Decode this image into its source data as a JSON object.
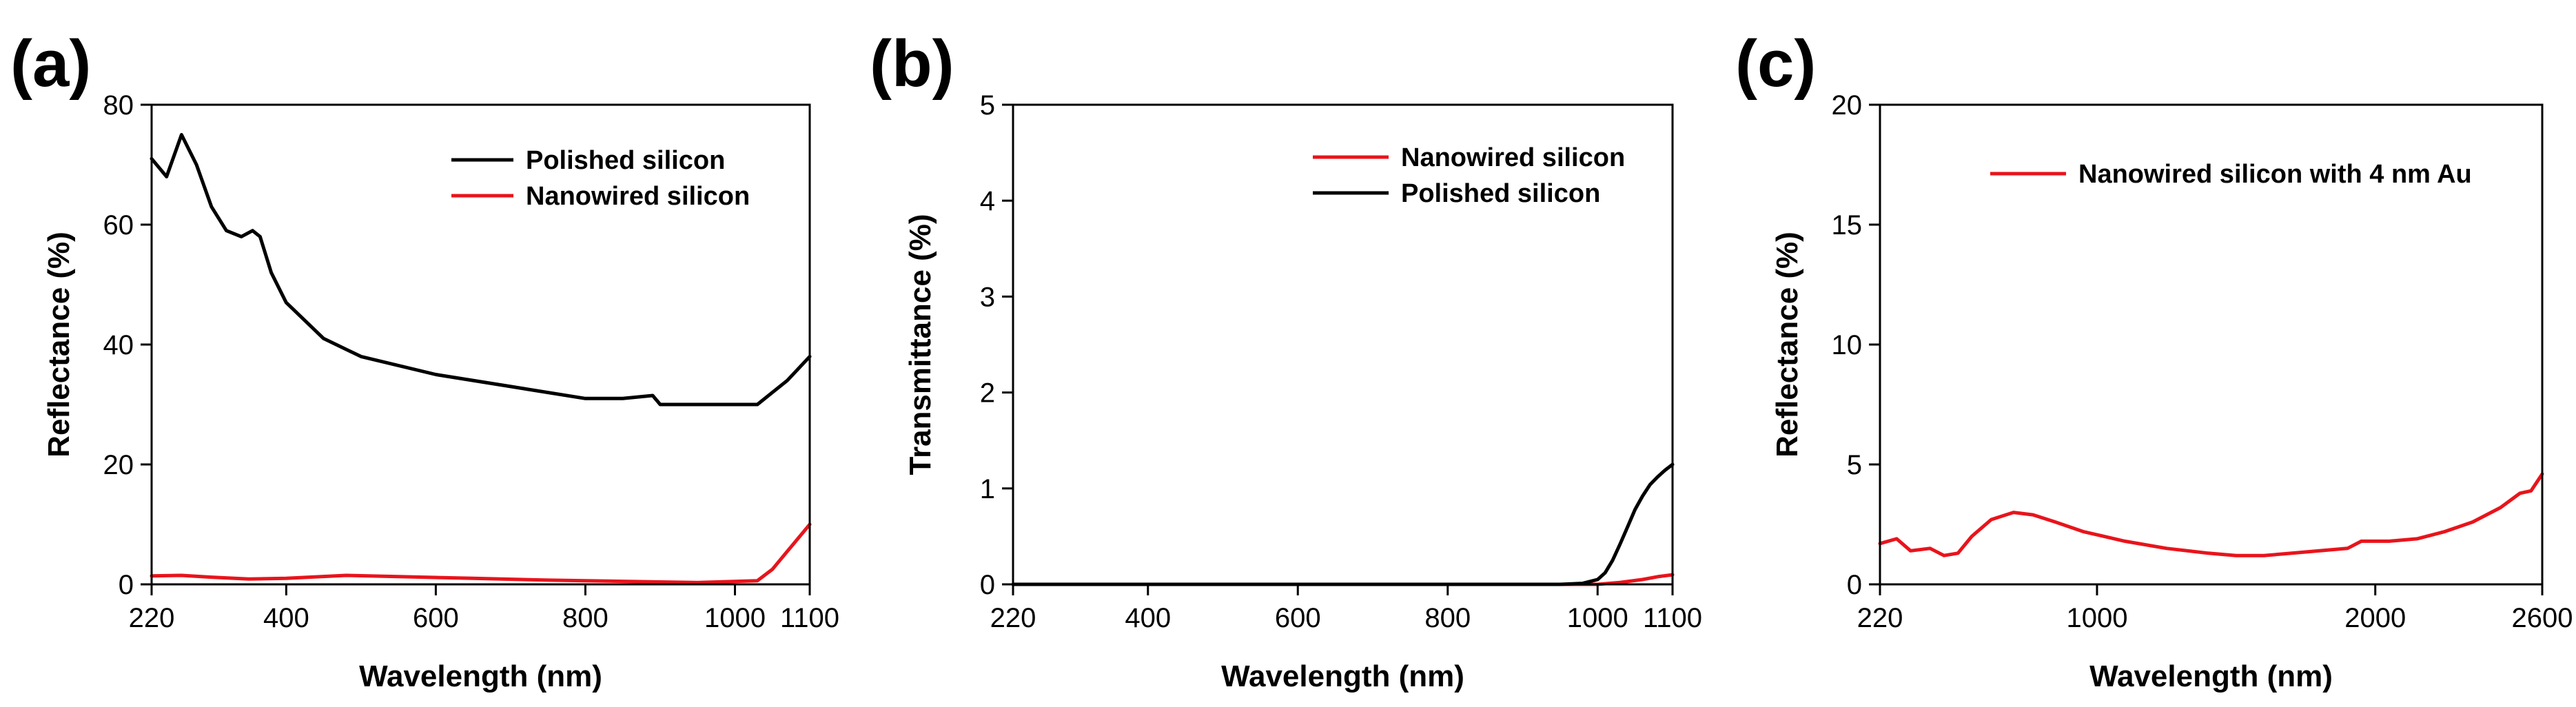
{
  "chart_data": [
    {
      "panel": "(a)",
      "type": "line",
      "xlabel": "Wavelength (nm)",
      "ylabel": "Reflectance (%)",
      "xlim": [
        220,
        1100
      ],
      "ylim": [
        0,
        80
      ],
      "xticks": [
        220,
        400,
        600,
        800,
        1000,
        1100
      ],
      "yticks": [
        0,
        20,
        40,
        60,
        80
      ],
      "legend_position": "top-right",
      "series": [
        {
          "name": "Polished silicon",
          "color": "#000000",
          "x": [
            220,
            240,
            260,
            280,
            300,
            320,
            340,
            355,
            365,
            380,
            400,
            450,
            500,
            600,
            700,
            800,
            850,
            890,
            900,
            950,
            1000,
            1030,
            1050,
            1070,
            1100
          ],
          "y": [
            71,
            68,
            75,
            70,
            63,
            59,
            58,
            59,
            58,
            52,
            47,
            41,
            38,
            35,
            33,
            31,
            31,
            31.5,
            30,
            30,
            30,
            30,
            32,
            34,
            38
          ]
        },
        {
          "name": "Nanowired silicon",
          "color": "#e8141c",
          "x": [
            220,
            260,
            300,
            350,
            400,
            480,
            550,
            650,
            750,
            850,
            950,
            1030,
            1050,
            1070,
            1100
          ],
          "y": [
            1.4,
            1.5,
            1.2,
            0.9,
            1.0,
            1.5,
            1.3,
            1.0,
            0.7,
            0.5,
            0.3,
            0.6,
            2.5,
            5.5,
            10
          ]
        }
      ]
    },
    {
      "panel": "(b)",
      "type": "line",
      "xlabel": "Wavelength (nm)",
      "ylabel": "Transmittance (%)",
      "xlim": [
        220,
        1100
      ],
      "ylim": [
        0,
        5
      ],
      "xticks": [
        220,
        400,
        600,
        800,
        1000,
        1100
      ],
      "yticks": [
        0,
        1,
        2,
        3,
        4,
        5
      ],
      "legend_position": "top-right",
      "series": [
        {
          "name": "Nanowired silicon",
          "color": "#e8141c",
          "x": [
            220,
            400,
            600,
            800,
            950,
            1000,
            1030,
            1060,
            1080,
            1100
          ],
          "y": [
            0,
            0,
            0,
            0,
            0,
            0,
            0.02,
            0.05,
            0.08,
            0.1
          ]
        },
        {
          "name": "Polished silicon",
          "color": "#000000",
          "x": [
            220,
            400,
            600,
            800,
            950,
            980,
            1000,
            1010,
            1020,
            1030,
            1040,
            1050,
            1060,
            1070,
            1080,
            1090,
            1100
          ],
          "y": [
            0,
            0,
            0,
            0,
            0,
            0.01,
            0.05,
            0.12,
            0.25,
            0.42,
            0.6,
            0.78,
            0.92,
            1.04,
            1.12,
            1.19,
            1.25
          ]
        }
      ]
    },
    {
      "panel": "(c)",
      "type": "line",
      "xlabel": "Wavelength (nm)",
      "ylabel": "Reflectance (%)",
      "xlim": [
        220,
        2600
      ],
      "ylim": [
        0,
        20
      ],
      "xticks": [
        220,
        1000,
        2000,
        2600
      ],
      "yticks": [
        0,
        5,
        10,
        15,
        20
      ],
      "legend_position": "top-right",
      "series": [
        {
          "name": "Nanowired silicon with 4 nm Au",
          "color": "#e8141c",
          "x": [
            220,
            280,
            330,
            400,
            450,
            500,
            550,
            620,
            700,
            770,
            850,
            950,
            1100,
            1250,
            1400,
            1500,
            1600,
            1700,
            1800,
            1900,
            1950,
            2050,
            2150,
            2250,
            2350,
            2450,
            2520,
            2560,
            2600
          ],
          "y": [
            1.7,
            1.9,
            1.4,
            1.5,
            1.2,
            1.3,
            2.0,
            2.7,
            3.0,
            2.9,
            2.6,
            2.2,
            1.8,
            1.5,
            1.3,
            1.2,
            1.2,
            1.3,
            1.4,
            1.5,
            1.8,
            1.8,
            1.9,
            2.2,
            2.6,
            3.2,
            3.8,
            3.9,
            4.6
          ]
        }
      ]
    }
  ]
}
